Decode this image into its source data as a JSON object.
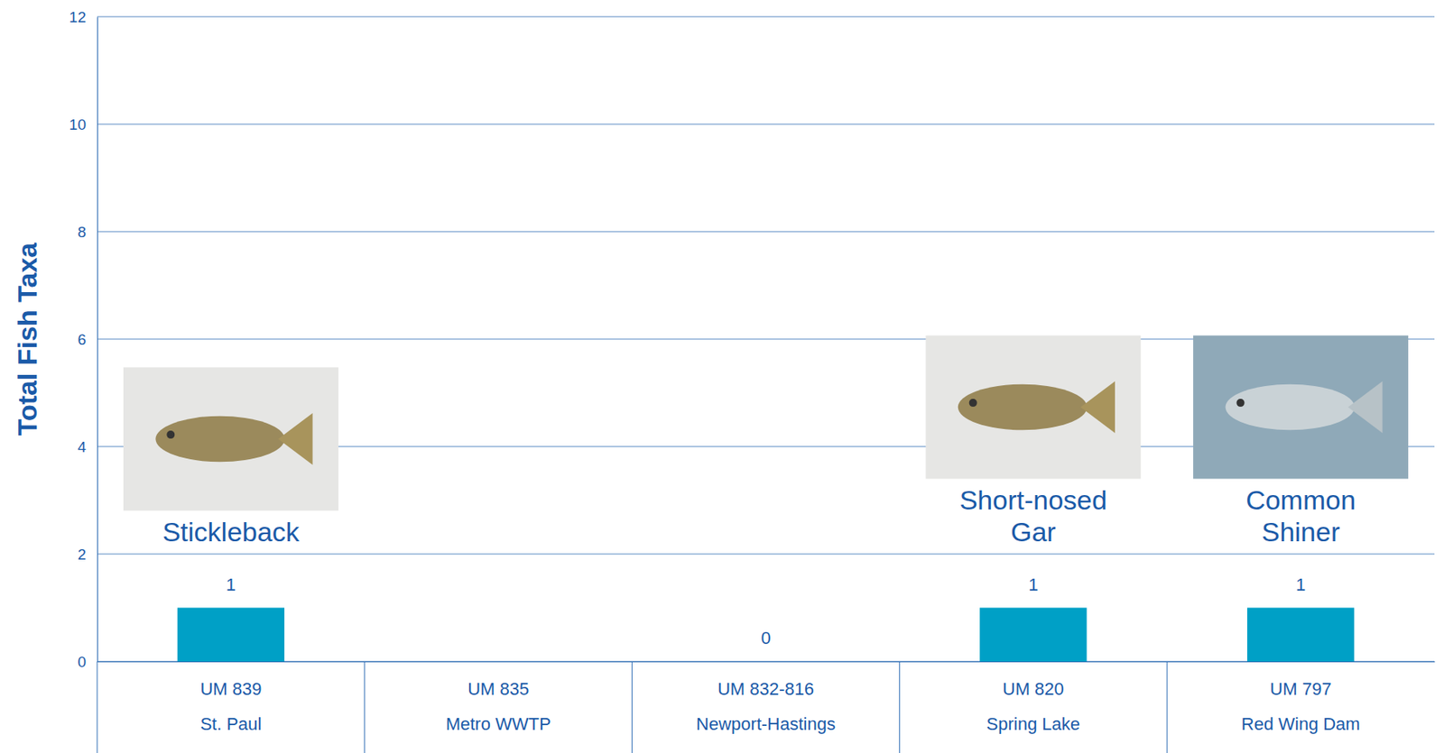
{
  "chart_data": {
    "type": "bar",
    "y_label": "Total Fish Taxa",
    "categories": [
      "UM 839\nSt. Paul",
      "UM 835\nMetro WWTP",
      "UM 832-816\nNewport-Hastings",
      "UM 820\nSpring Lake",
      "UM 797\nRed Wing Dam"
    ],
    "values": [
      1,
      null,
      0,
      1,
      1
    ],
    "color": "#00a0c6",
    "ylim": [
      0,
      12
    ],
    "yticks": [
      0,
      2,
      4,
      6,
      8,
      10,
      12
    ],
    "grid": true,
    "data_labels": true,
    "annotations": [
      {
        "text": "Stickleback",
        "category": "UM 839\nSt. Paul"
      },
      {
        "text": "Short-nosed Gar",
        "category": "UM 820\nSpring Lake"
      },
      {
        "text": "Common Shiner",
        "category": "UM 797\nRed Wing Dam"
      }
    ]
  }
}
